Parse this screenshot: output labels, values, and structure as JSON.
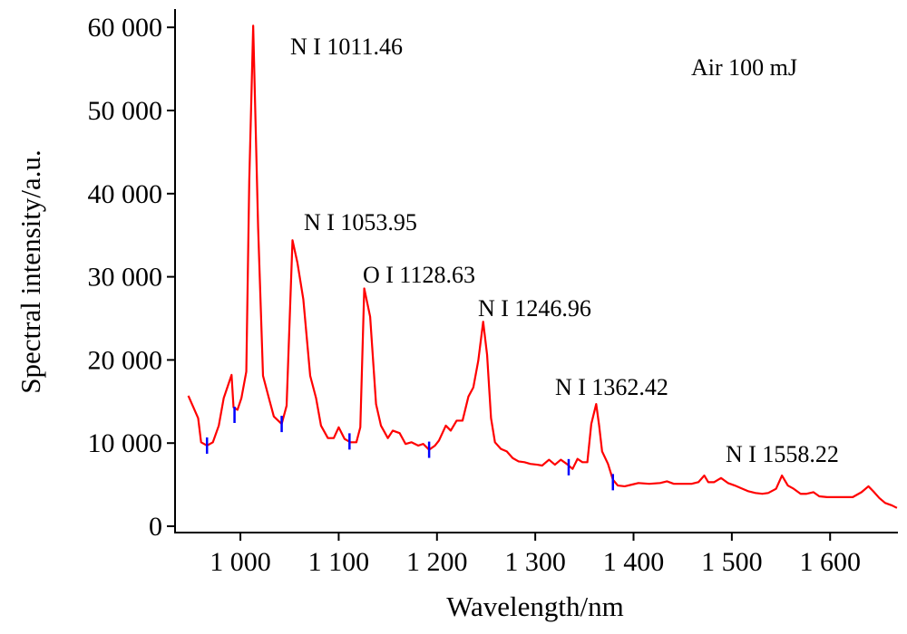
{
  "chart_data": {
    "type": "line",
    "xlabel": "Wavelength/nm",
    "ylabel": "Spectral intensity/a.u.",
    "annotations": [
      "N I 1011.46",
      "Air 100 mJ",
      "N I 1053.95",
      "O I 1128.63",
      "N I 1246.96",
      "N I 1362.42",
      "N I 1558.22"
    ],
    "xlim": [
      933.5,
      1669
    ],
    "ylim": [
      -760,
      62200
    ],
    "xticks": [
      {
        "value": 1000,
        "label": "1 000"
      },
      {
        "value": 1100,
        "label": "1 100"
      },
      {
        "value": 1200,
        "label": "1 200"
      },
      {
        "value": 1300,
        "label": "1 300"
      },
      {
        "value": 1400,
        "label": "1 400"
      },
      {
        "value": 1500,
        "label": "1 500"
      },
      {
        "value": 1600,
        "label": "1 600"
      }
    ],
    "yticks": [
      0,
      {
        "value": 10000,
        "label": "10 000"
      },
      {
        "value": 20000,
        "label": "20 000"
      },
      {
        "value": 30000,
        "label": "30 000"
      },
      {
        "value": 40000,
        "label": "40 000"
      },
      {
        "value": 50000,
        "label": "50 000"
      },
      {
        "value": 60000,
        "label": "60 000"
      }
    ],
    "grid": false,
    "x": [
      947,
      957,
      960,
      966,
      972,
      978,
      983,
      989,
      991,
      993,
      997,
      1001,
      1006,
      1009,
      1013,
      1018,
      1023,
      1029,
      1034,
      1042,
      1047,
      1053,
      1058,
      1064,
      1071,
      1077,
      1082,
      1089,
      1095,
      1100,
      1106,
      1112,
      1118,
      1122,
      1126,
      1132,
      1138,
      1143,
      1150,
      1155,
      1162,
      1168,
      1174,
      1181,
      1186,
      1192,
      1198,
      1202,
      1209,
      1214,
      1220,
      1226,
      1232,
      1237,
      1242,
      1247,
      1251,
      1255,
      1259,
      1265,
      1271,
      1277,
      1283,
      1289,
      1295,
      1302,
      1307,
      1314,
      1320,
      1326,
      1332,
      1338,
      1343,
      1348,
      1353,
      1357,
      1362,
      1365,
      1368,
      1374,
      1379,
      1384,
      1391,
      1398,
      1405,
      1416,
      1427,
      1434,
      1441,
      1450,
      1459,
      1466,
      1472,
      1476,
      1482,
      1489,
      1496,
      1503,
      1511,
      1517,
      1524,
      1531,
      1537,
      1545,
      1551,
      1557,
      1563,
      1570,
      1576,
      1583,
      1589,
      1597,
      1609,
      1623,
      1632,
      1639,
      1644,
      1650,
      1656,
      1663,
      1668
    ],
    "series": [
      {
        "name": "Air 100 mJ",
        "color": "#ff0000",
        "values": [
          15700,
          13000,
          10100,
          9700,
          10100,
          12100,
          15400,
          17500,
          18200,
          14300,
          14000,
          15400,
          18600,
          41500,
          60200,
          36000,
          18100,
          15400,
          13200,
          12300,
          14500,
          34400,
          31700,
          27300,
          18100,
          15400,
          12100,
          10600,
          10600,
          11900,
          10500,
          10100,
          10100,
          11900,
          28600,
          25200,
          14700,
          12100,
          10600,
          11500,
          11200,
          9900,
          10100,
          9700,
          9900,
          9200,
          9700,
          10300,
          12100,
          11500,
          12700,
          12700,
          15600,
          16700,
          19900,
          24600,
          20600,
          13000,
          10100,
          9300,
          9000,
          8200,
          7800,
          7700,
          7500,
          7400,
          7300,
          8000,
          7400,
          8000,
          7500,
          6900,
          8100,
          7700,
          7700,
          12300,
          14700,
          12100,
          9000,
          7500,
          5600,
          4900,
          4800,
          5000,
          5200,
          5100,
          5200,
          5400,
          5100,
          5100,
          5100,
          5300,
          6100,
          5300,
          5300,
          5800,
          5200,
          4900,
          4500,
          4200,
          4000,
          3900,
          4000,
          4500,
          6100,
          4900,
          4500,
          3900,
          3900,
          4100,
          3600,
          3500,
          3500,
          3500,
          4100,
          4800,
          4200,
          3400,
          2800,
          2500,
          2200
        ]
      }
    ],
    "markers": {
      "color": "#0000ff",
      "x": [
        966,
        994,
        1042,
        1111,
        1192,
        1334,
        1379
      ],
      "y": [
        9700,
        13400,
        12300,
        10200,
        9200,
        7100,
        5300
      ]
    }
  }
}
